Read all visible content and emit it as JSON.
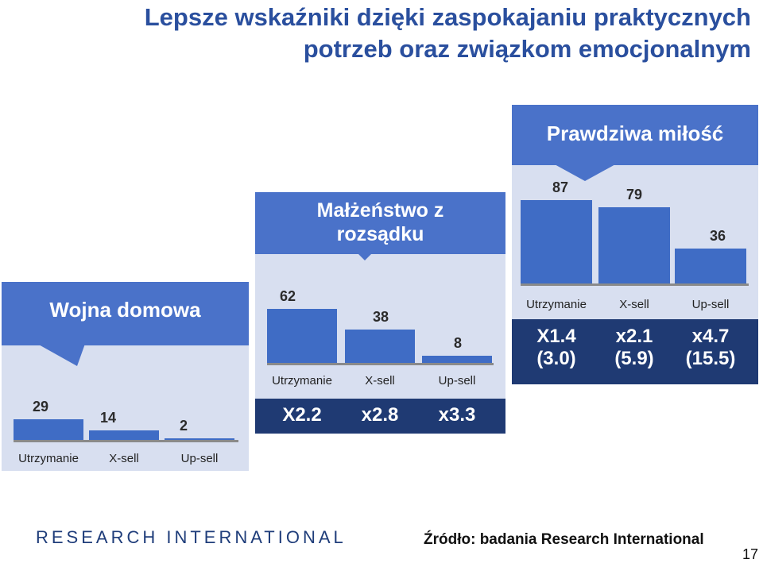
{
  "title_line1": "Lepsze wskaźniki dzięki zaspokajaniu praktycznych",
  "title_line2": "potrzeb oraz związkom emocjonalnym",
  "colors": {
    "panel": "#d8dff0",
    "banner": "#4a72c9",
    "bar": "#3f6cc5",
    "dark": "#1f3a73"
  },
  "chart_data": [
    {
      "type": "bar",
      "title": "Wojna domowa",
      "categories": [
        "Utrzymanie",
        "X-sell",
        "Up-sell"
      ],
      "values": [
        29,
        14,
        2
      ],
      "ylim": [
        0,
        100
      ]
    },
    {
      "type": "bar",
      "title": "Małżeństwo z rozsądku",
      "title_lines": [
        "Małżeństwo z",
        "rozsądku"
      ],
      "categories": [
        "Utrzymanie",
        "X-sell",
        "Up-sell"
      ],
      "values": [
        62,
        38,
        8
      ],
      "multipliers": [
        "X2.2",
        "x2.8",
        "x3.3"
      ],
      "ylim": [
        0,
        100
      ]
    },
    {
      "type": "bar",
      "title": "Prawdziwa miłość",
      "categories": [
        "Utrzymanie",
        "X-sell",
        "Up-sell"
      ],
      "values": [
        87,
        79,
        36
      ],
      "multipliers": [
        "X1.4",
        "x2.1",
        "x4.7"
      ],
      "multipliers_secondary": [
        "(3.0)",
        "(5.9)",
        "(15.5)"
      ],
      "ylim": [
        0,
        100
      ]
    }
  ],
  "logo_text": "RESEARCH INTERNATIONAL",
  "source": "Źródło: badania Research International",
  "page_number": "17"
}
